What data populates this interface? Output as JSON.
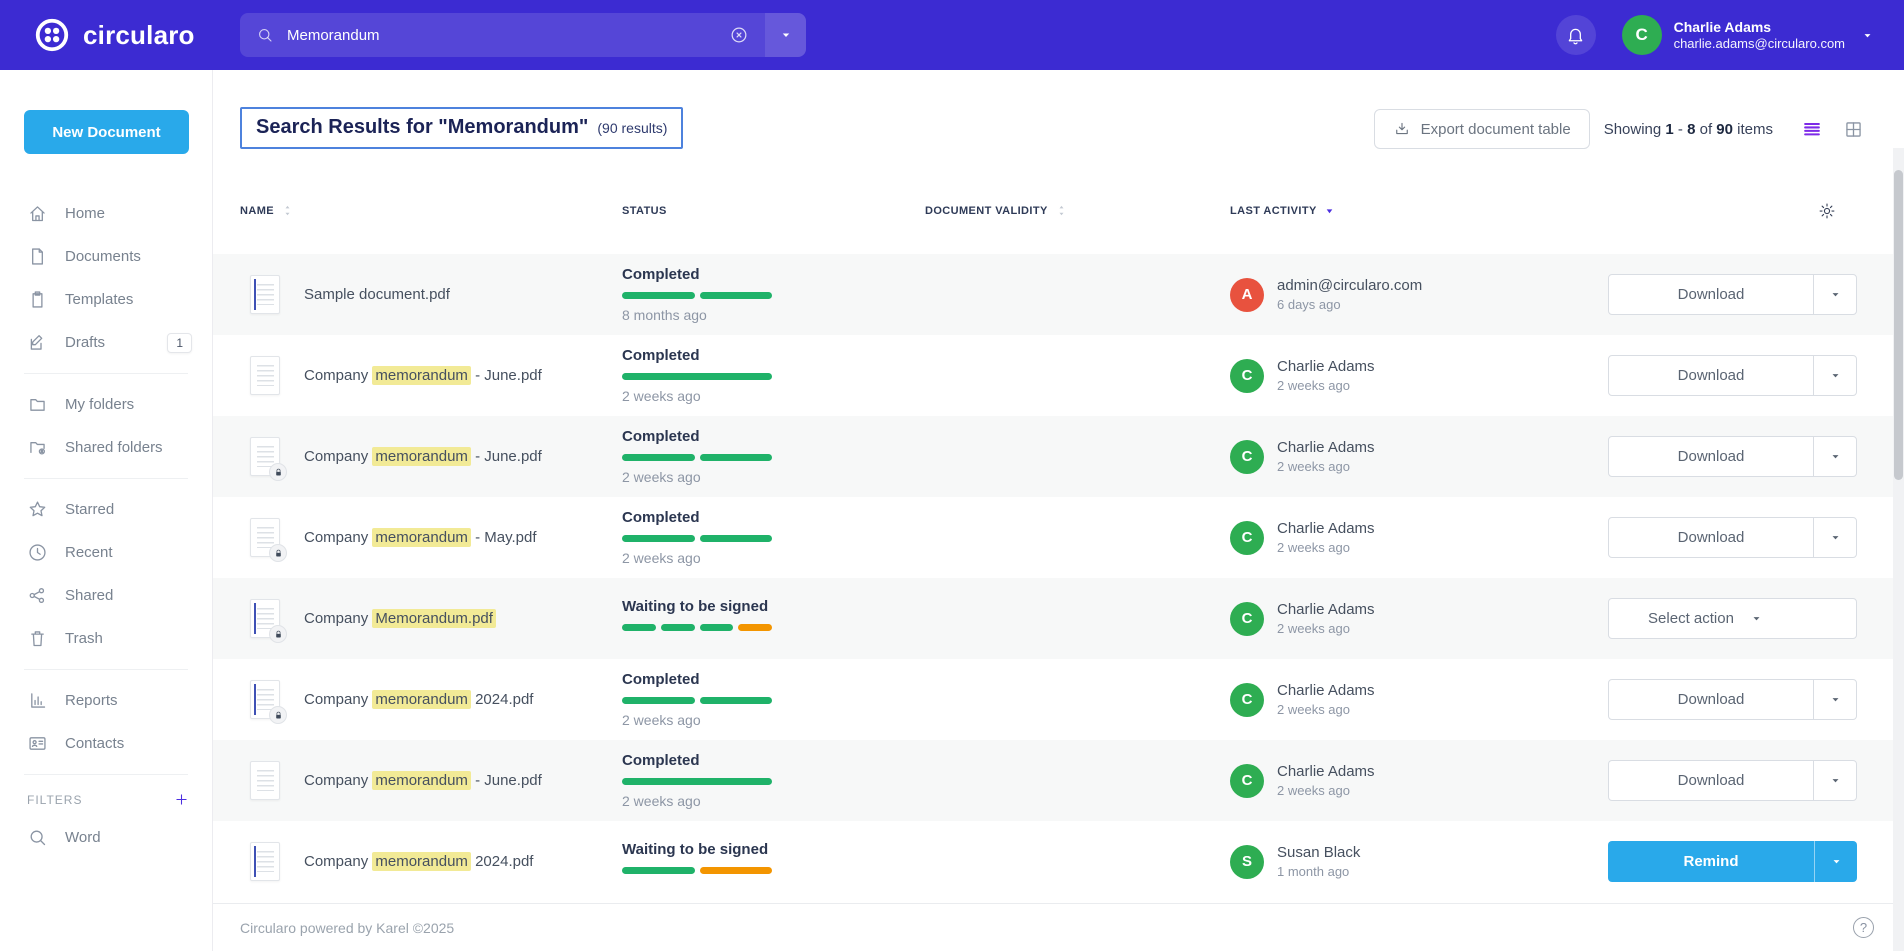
{
  "colors": {
    "topbar": "#3c2bd2",
    "primary_button": "#29a9ea",
    "accent_purple": "#4c2fe0",
    "list_view_active": "#7d2ae8",
    "status_green": "#1fb269",
    "status_orange": "#f39500",
    "highlight_yellow": "#f2ea96",
    "avatar_red": "#e8523e",
    "avatar_green": "#2ead52",
    "title_border_blue": "#4d82dd"
  },
  "icons": {
    "note": "semantic names mapped to inline SVG shapes in template script",
    "used": [
      "circularo-logo",
      "search",
      "close-circle",
      "caret-down",
      "bell",
      "home",
      "document",
      "template",
      "draft",
      "folder",
      "shared-folder",
      "star",
      "clock",
      "share",
      "trash",
      "reports",
      "contacts",
      "plus",
      "export",
      "list-view",
      "grid-view",
      "sort",
      "sort-desc",
      "gear",
      "lock",
      "question"
    ]
  },
  "topbar": {
    "brand": "circularo",
    "search": {
      "value": "Memorandum"
    },
    "user": {
      "initial": "C",
      "name": "Charlie Adams",
      "email": "charlie.adams@circularo.com"
    }
  },
  "sidebar": {
    "new_document_label": "New Document",
    "items": [
      {
        "icon": "home",
        "label": "Home"
      },
      {
        "icon": "document",
        "label": "Documents"
      },
      {
        "icon": "template",
        "label": "Templates"
      },
      {
        "icon": "draft",
        "label": "Drafts",
        "badge": "1",
        "divider_after": true
      },
      {
        "icon": "folder",
        "label": "My folders"
      },
      {
        "icon": "shared-folder",
        "label": "Shared folders",
        "divider_after": true
      },
      {
        "icon": "star",
        "label": "Starred"
      },
      {
        "icon": "clock",
        "label": "Recent"
      },
      {
        "icon": "share",
        "label": "Shared"
      },
      {
        "icon": "trash",
        "label": "Trash",
        "divider_after": true
      },
      {
        "icon": "reports",
        "label": "Reports"
      },
      {
        "icon": "contacts",
        "label": "Contacts",
        "divider_after": true
      }
    ],
    "filters_label": "FILTERS",
    "filter_items": [
      {
        "icon": "search",
        "label": "Word"
      }
    ]
  },
  "header": {
    "title": "Search Results for \"Memorandum\"",
    "results_count": "(90 results)",
    "export_label": "Export document table",
    "showing": {
      "prefix": "Showing",
      "from": "1",
      "dash": "-",
      "to": "8",
      "of": "of",
      "total": "90",
      "items": "items"
    }
  },
  "table": {
    "columns": [
      "NAME",
      "STATUS",
      "DOCUMENT VALIDITY",
      "LAST ACTIVITY"
    ],
    "rows": [
      {
        "name_pre": "Sample document.pdf",
        "name_hl": "",
        "name_post": "",
        "thumb": "t-blue",
        "locked": false,
        "status": {
          "label": "Completed",
          "segments": [
            "g",
            "g"
          ],
          "time": "8 months ago"
        },
        "activity": {
          "initial": "A",
          "color": "av-red",
          "name": "admin@circularo.com",
          "time": "6 days ago"
        },
        "action": {
          "label": "Download",
          "style": "outline split"
        }
      },
      {
        "name_pre": "Company ",
        "name_hl": "memorandum",
        "name_post": " - June.pdf",
        "thumb": "t-plain",
        "locked": false,
        "status": {
          "label": "Completed",
          "segments": [
            "g"
          ],
          "time": "2 weeks ago"
        },
        "activity": {
          "initial": "C",
          "color": "av-green",
          "name": "Charlie Adams",
          "time": "2 weeks ago"
        },
        "action": {
          "label": "Download",
          "style": "outline split"
        }
      },
      {
        "name_pre": "Company ",
        "name_hl": "memorandum",
        "name_post": " - June.pdf",
        "thumb": "t-plain",
        "locked": true,
        "status": {
          "label": "Completed",
          "segments": [
            "g",
            "g"
          ],
          "time": "2 weeks ago"
        },
        "activity": {
          "initial": "C",
          "color": "av-green",
          "name": "Charlie Adams",
          "time": "2 weeks ago"
        },
        "action": {
          "label": "Download",
          "style": "outline split"
        }
      },
      {
        "name_pre": "Company ",
        "name_hl": "memorandum",
        "name_post": " - May.pdf",
        "thumb": "t-plain",
        "locked": true,
        "status": {
          "label": "Completed",
          "segments": [
            "g",
            "g"
          ],
          "time": "2 weeks ago"
        },
        "activity": {
          "initial": "C",
          "color": "av-green",
          "name": "Charlie Adams",
          "time": "2 weeks ago"
        },
        "action": {
          "label": "Download",
          "style": "outline split"
        }
      },
      {
        "name_pre": "Company ",
        "name_hl": "Memorandum.pdf",
        "name_post": "",
        "thumb": "t-blue",
        "locked": true,
        "status": {
          "label": "Waiting to be signed",
          "segments": [
            "g",
            "g",
            "g",
            "o"
          ],
          "time": ""
        },
        "activity": {
          "initial": "C",
          "color": "av-green",
          "name": "Charlie Adams",
          "time": "2 weeks ago"
        },
        "action": {
          "label": "Select action",
          "style": "outline nosplit"
        }
      },
      {
        "name_pre": "Company ",
        "name_hl": "memorandum",
        "name_post": " 2024.pdf",
        "thumb": "t-blue",
        "locked": true,
        "status": {
          "label": "Completed",
          "segments": [
            "g",
            "g"
          ],
          "time": "2 weeks ago"
        },
        "activity": {
          "initial": "C",
          "color": "av-green",
          "name": "Charlie Adams",
          "time": "2 weeks ago"
        },
        "action": {
          "label": "Download",
          "style": "outline split"
        }
      },
      {
        "name_pre": "Company ",
        "name_hl": "memorandum",
        "name_post": " - June.pdf",
        "thumb": "t-plain",
        "locked": false,
        "status": {
          "label": "Completed",
          "segments": [
            "g"
          ],
          "time": "2 weeks ago"
        },
        "activity": {
          "initial": "C",
          "color": "av-green",
          "name": "Charlie Adams",
          "time": "2 weeks ago"
        },
        "action": {
          "label": "Download",
          "style": "outline split"
        }
      },
      {
        "name_pre": "Company ",
        "name_hl": "memorandum",
        "name_post": " 2024.pdf",
        "thumb": "t-blue",
        "locked": false,
        "status": {
          "label": "Waiting to be signed",
          "segments": [
            "g",
            "o"
          ],
          "time": ""
        },
        "activity": {
          "initial": "S",
          "color": "av-green",
          "name": "Susan Black",
          "time": "1 month ago"
        },
        "action": {
          "label": "Remind",
          "style": "primary split"
        }
      }
    ]
  },
  "footer": {
    "text": "Circularo powered by Karel ©2025",
    "help_glyph": "?"
  }
}
